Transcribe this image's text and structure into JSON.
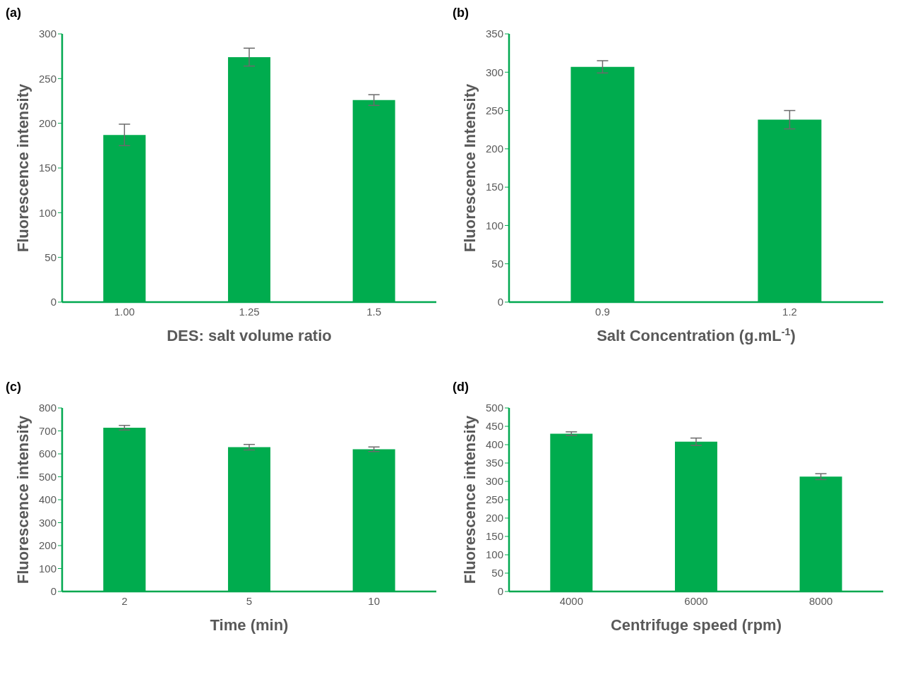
{
  "chart_data": [
    {
      "type": "bar",
      "title": "(a)",
      "xlabel": "DES: salt volume ratio",
      "ylabel": "Fluorescence intensity",
      "categories": [
        "1.00",
        "1.25",
        "1.5"
      ],
      "values": [
        187,
        274,
        226
      ],
      "errors": [
        12,
        10,
        6
      ],
      "color": "#00ac4e",
      "ylim": [
        0,
        300
      ],
      "yticks": [
        0,
        50,
        100,
        150,
        200,
        250,
        300
      ],
      "grid": false,
      "legend": false
    },
    {
      "type": "bar",
      "title": "(b)",
      "xlabel": "Salt Concentration (g.mL$^{-1}$)",
      "ylabel": "Fluorescence Intensity",
      "categories": [
        "0.9",
        "1.2"
      ],
      "values": [
        307,
        238
      ],
      "errors": [
        8,
        12
      ],
      "color": "#00ac4e",
      "ylim": [
        0,
        350
      ],
      "yticks": [
        0,
        50,
        100,
        150,
        200,
        250,
        300,
        350
      ],
      "grid": false,
      "legend": false
    },
    {
      "type": "bar",
      "title": "(c)",
      "xlabel": "Time (min)",
      "ylabel": "Fluorescence intensity",
      "categories": [
        "2",
        "5",
        "10"
      ],
      "values": [
        714,
        629,
        620
      ],
      "errors": [
        10,
        12,
        10
      ],
      "color": "#00ac4e",
      "ylim": [
        0,
        800
      ],
      "yticks": [
        0,
        100,
        200,
        300,
        400,
        500,
        600,
        700,
        800
      ],
      "grid": false,
      "legend": false
    },
    {
      "type": "bar",
      "title": "(d)",
      "xlabel": "Centrifuge speed (rpm)",
      "ylabel": "Fluorescence intensity",
      "categories": [
        "4000",
        "6000",
        "8000"
      ],
      "values": [
        430,
        408,
        313
      ],
      "errors": [
        5,
        10,
        8
      ],
      "color": "#00ac4e",
      "ylim": [
        0,
        500
      ],
      "yticks": [
        0,
        50,
        100,
        150,
        200,
        250,
        300,
        350,
        400,
        450,
        500
      ],
      "grid": false,
      "legend": false
    }
  ]
}
